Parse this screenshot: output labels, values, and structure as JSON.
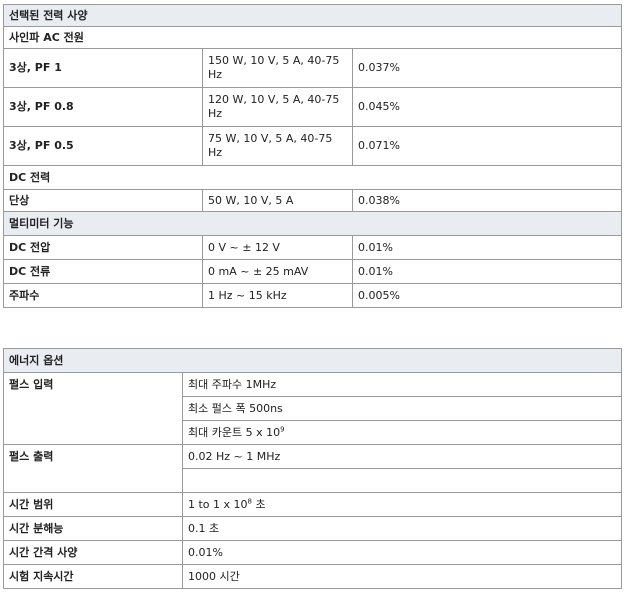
{
  "table1": {
    "title": "선택된 전력 사양",
    "section_ac": "사인파 AC 전원",
    "ac_rows": [
      {
        "label": "3상, PF 1",
        "spec": "150 W, 10 V, 5 A, 40-75 Hz",
        "value": "0.037%"
      },
      {
        "label": "3상, PF 0.8",
        "spec": "120 W, 10 V, 5 A, 40-75 Hz",
        "value": "0.045%"
      },
      {
        "label": "3상, PF 0.5",
        "spec": "75 W, 10 V, 5 A, 40-75 Hz",
        "value": "0.071%"
      }
    ],
    "section_dc": "DC 전력",
    "dc_rows": [
      {
        "label": "단상",
        "spec": "50 W, 10 V, 5 A",
        "value": "0.038%"
      }
    ],
    "section_multimeter": "멀티미터 기능",
    "mm_rows": [
      {
        "label": "DC 전압",
        "spec": "0 V ~ ± 12 V",
        "value": "0.01%"
      },
      {
        "label": "DC 전류",
        "spec": "0 mA ~ ± 25 mAV",
        "value": "0.01%"
      },
      {
        "label": "주파수",
        "spec": "1 Hz ~ 15 kHz",
        "value": "0.005%"
      }
    ]
  },
  "table2": {
    "title": "에너지 옵션",
    "pulse_input": {
      "label": "펄스 입력",
      "values": [
        "최대 주파수 1MHz",
        "최소 펄스 폭 500ns"
      ],
      "count_prefix": "최대 카운트 5 x 10",
      "count_exp": "9"
    },
    "pulse_output": {
      "label": "펄스 출력",
      "value": "0.02 Hz ~ 1 MHz",
      "extra": ""
    },
    "time_range": {
      "label": "시간 범위",
      "prefix": "1 to 1 x 10",
      "exp": "8",
      "suffix": " 초"
    },
    "rows": [
      {
        "label": "시간 분해능",
        "value": "0.1 초"
      },
      {
        "label": "시간 간격 사양",
        "value": "0.01%"
      },
      {
        "label": "시험 지속시간",
        "value": "1000 시간"
      }
    ]
  }
}
